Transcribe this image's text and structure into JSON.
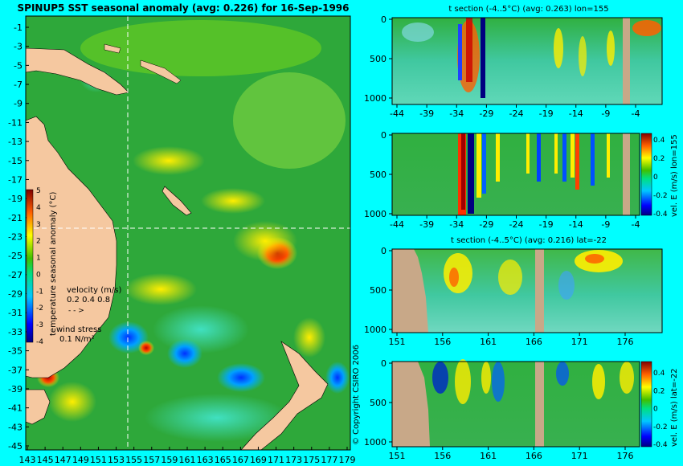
{
  "colors": {
    "background": "#00ffff",
    "land": "#f5c8a0",
    "ocean_base": "#2ea83a",
    "section_land": "#c8a888"
  },
  "main_map": {
    "title": "SPINUP5 SST seasonal anomaly (avg: 0.226) for 16-Sep-1996",
    "lat_ticks": [
      "-1",
      "-3",
      "-5",
      "-7",
      "-9",
      "-11",
      "-13",
      "-15",
      "-17",
      "-19",
      "-21",
      "-23",
      "-25",
      "-27",
      "-29",
      "-31",
      "-33",
      "-35",
      "-37",
      "-39",
      "-41",
      "-43",
      "-45"
    ],
    "lon_ticks": [
      "143",
      "145",
      "147",
      "149",
      "151",
      "153",
      "155",
      "157",
      "159",
      "161",
      "163",
      "165",
      "167",
      "169",
      "171",
      "173",
      "175",
      "177",
      "179"
    ],
    "colorbar": {
      "label": "temperature seasonal anomaly (°C)",
      "ticks": [
        "5",
        "4",
        "3",
        "2",
        "1",
        "0",
        "-1",
        "-2",
        "-3",
        "-4"
      ]
    },
    "velocity_legend": {
      "title": "velocity (m/s)",
      "values": "0.2 0.4 0.8"
    },
    "wind_legend": {
      "title": "wind stress",
      "value": "0.1 N/m²"
    },
    "copyright": "© Copyright CSIRO 2006"
  },
  "panel1": {
    "title": "t section (-4..5°C) (avg: 0.263) lon=155",
    "y_ticks": [
      "0",
      "500",
      "1000"
    ],
    "x_ticks": [
      "-44",
      "-39",
      "-34",
      "-29",
      "-24",
      "-19",
      "-14",
      "-9",
      "-4"
    ]
  },
  "panel2": {
    "y_ticks": [
      "0",
      "500",
      "1000"
    ],
    "x_ticks": [
      "-44",
      "-39",
      "-34",
      "-29",
      "-24",
      "-19",
      "-14",
      "-9",
      "-4"
    ],
    "colorbar_label": "vel. E (m/s) lon=155",
    "colorbar_ticks": [
      "0.4",
      "0.2",
      "0",
      "-0.2",
      "-0.4"
    ]
  },
  "panel3": {
    "title": "t section (-4..5°C) (avg: 0.216) lat=-22",
    "y_ticks": [
      "0",
      "500",
      "1000"
    ],
    "x_ticks": [
      "151",
      "156",
      "161",
      "166",
      "171",
      "176"
    ]
  },
  "panel4": {
    "y_ticks": [
      "0",
      "500",
      "1000"
    ],
    "x_ticks": [
      "151",
      "156",
      "161",
      "166",
      "171",
      "176"
    ],
    "colorbar_label": "vel. E (m/s) lat=-22",
    "colorbar_ticks": [
      "0.4",
      "0.2",
      "0",
      "-0.2",
      "-0.4"
    ]
  },
  "chart_data": [
    {
      "type": "heatmap",
      "title": "SPINUP5 SST seasonal anomaly (avg: 0.226) for 16-Sep-1996",
      "x_ticks": [
        143,
        145,
        147,
        149,
        151,
        153,
        155,
        157,
        159,
        161,
        163,
        165,
        167,
        169,
        171,
        173,
        175,
        177,
        179
      ],
      "y_ticks": [
        -1,
        -3,
        -5,
        -7,
        -9,
        -11,
        -13,
        -15,
        -17,
        -19,
        -21,
        -23,
        -25,
        -27,
        -29,
        -31,
        -33,
        -35,
        -37,
        -39,
        -41,
        -43,
        -45
      ],
      "colorbar_range": [
        -4,
        5
      ],
      "colorbar_label": "temperature seasonal anomaly (°C)",
      "avg": 0.226
    },
    {
      "type": "heatmap",
      "title": "t section (-4..5°C) (avg: 0.263) lon=155",
      "x_ticks": [
        -44,
        -39,
        -34,
        -29,
        -24,
        -19,
        -14,
        -9,
        -4
      ],
      "y_ticks": [
        0,
        500,
        1000
      ],
      "avg": 0.263
    },
    {
      "type": "heatmap",
      "title": "",
      "x_ticks": [
        -44,
        -39,
        -34,
        -29,
        -24,
        -19,
        -14,
        -9,
        -4
      ],
      "y_ticks": [
        0,
        500,
        1000
      ],
      "colorbar_range": [
        -0.4,
        0.4
      ],
      "colorbar_label": "vel. E (m/s) lon=155"
    },
    {
      "type": "heatmap",
      "title": "t section (-4..5°C) (avg: 0.216) lat=-22",
      "x_ticks": [
        151,
        156,
        161,
        166,
        171,
        176
      ],
      "y_ticks": [
        0,
        500,
        1000
      ],
      "avg": 0.216
    },
    {
      "type": "heatmap",
      "title": "",
      "x_ticks": [
        151,
        156,
        161,
        166,
        171,
        176
      ],
      "y_ticks": [
        0,
        500,
        1000
      ],
      "colorbar_range": [
        -0.4,
        0.4
      ],
      "colorbar_label": "vel. E (m/s) lat=-22"
    }
  ]
}
